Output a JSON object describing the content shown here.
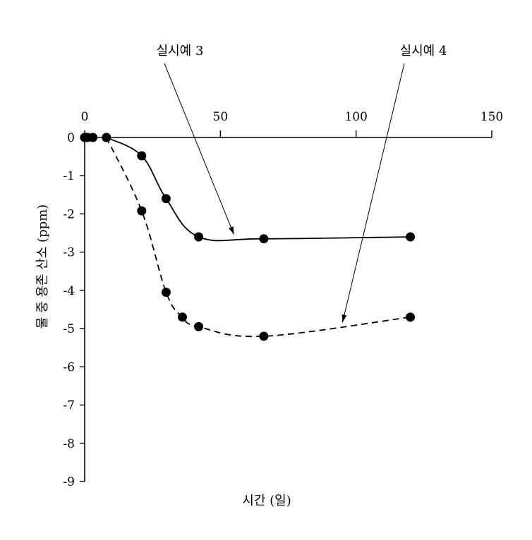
{
  "chart_data": {
    "type": "line",
    "xlabel": "시간 (일)",
    "ylabel": "물 중 용존 산소 (ppm)",
    "xlim": [
      0,
      150
    ],
    "ylim": [
      -9,
      0
    ],
    "x_ticks": [
      0,
      50,
      100,
      150
    ],
    "x_tick_labels": [
      "0",
      "50",
      "100",
      "150"
    ],
    "y_ticks": [
      0,
      -1,
      -2,
      -3,
      -4,
      -5,
      -6,
      -7,
      -8,
      -9
    ],
    "y_tick_labels": [
      "0",
      "-1",
      "-2",
      "-3",
      "-4",
      "-5",
      "-6",
      "-7",
      "-8",
      "-9"
    ],
    "x_axis_position": "top",
    "grid": false,
    "series": [
      {
        "name": "실시예 3",
        "line_style": "solid",
        "x": [
          0,
          1,
          3,
          8,
          21,
          30,
          42,
          66,
          120
        ],
        "y": [
          0,
          0,
          0,
          0,
          -0.48,
          -1.6,
          -2.6,
          -2.65,
          -2.6
        ]
      },
      {
        "name": "실시예 4",
        "line_style": "dashed",
        "x": [
          0,
          1,
          3,
          8,
          21,
          30,
          36,
          42,
          66,
          120
        ],
        "y": [
          0,
          0,
          0,
          0,
          -1.92,
          -4.05,
          -4.7,
          -4.95,
          -5.2,
          -4.7
        ]
      }
    ],
    "annotations": [
      {
        "text": "실시예 3",
        "points_to": {
          "x": 55,
          "y": -2.65
        }
      },
      {
        "text": "실시예 4",
        "points_to": {
          "x": 95,
          "y": -4.95
        }
      }
    ]
  }
}
